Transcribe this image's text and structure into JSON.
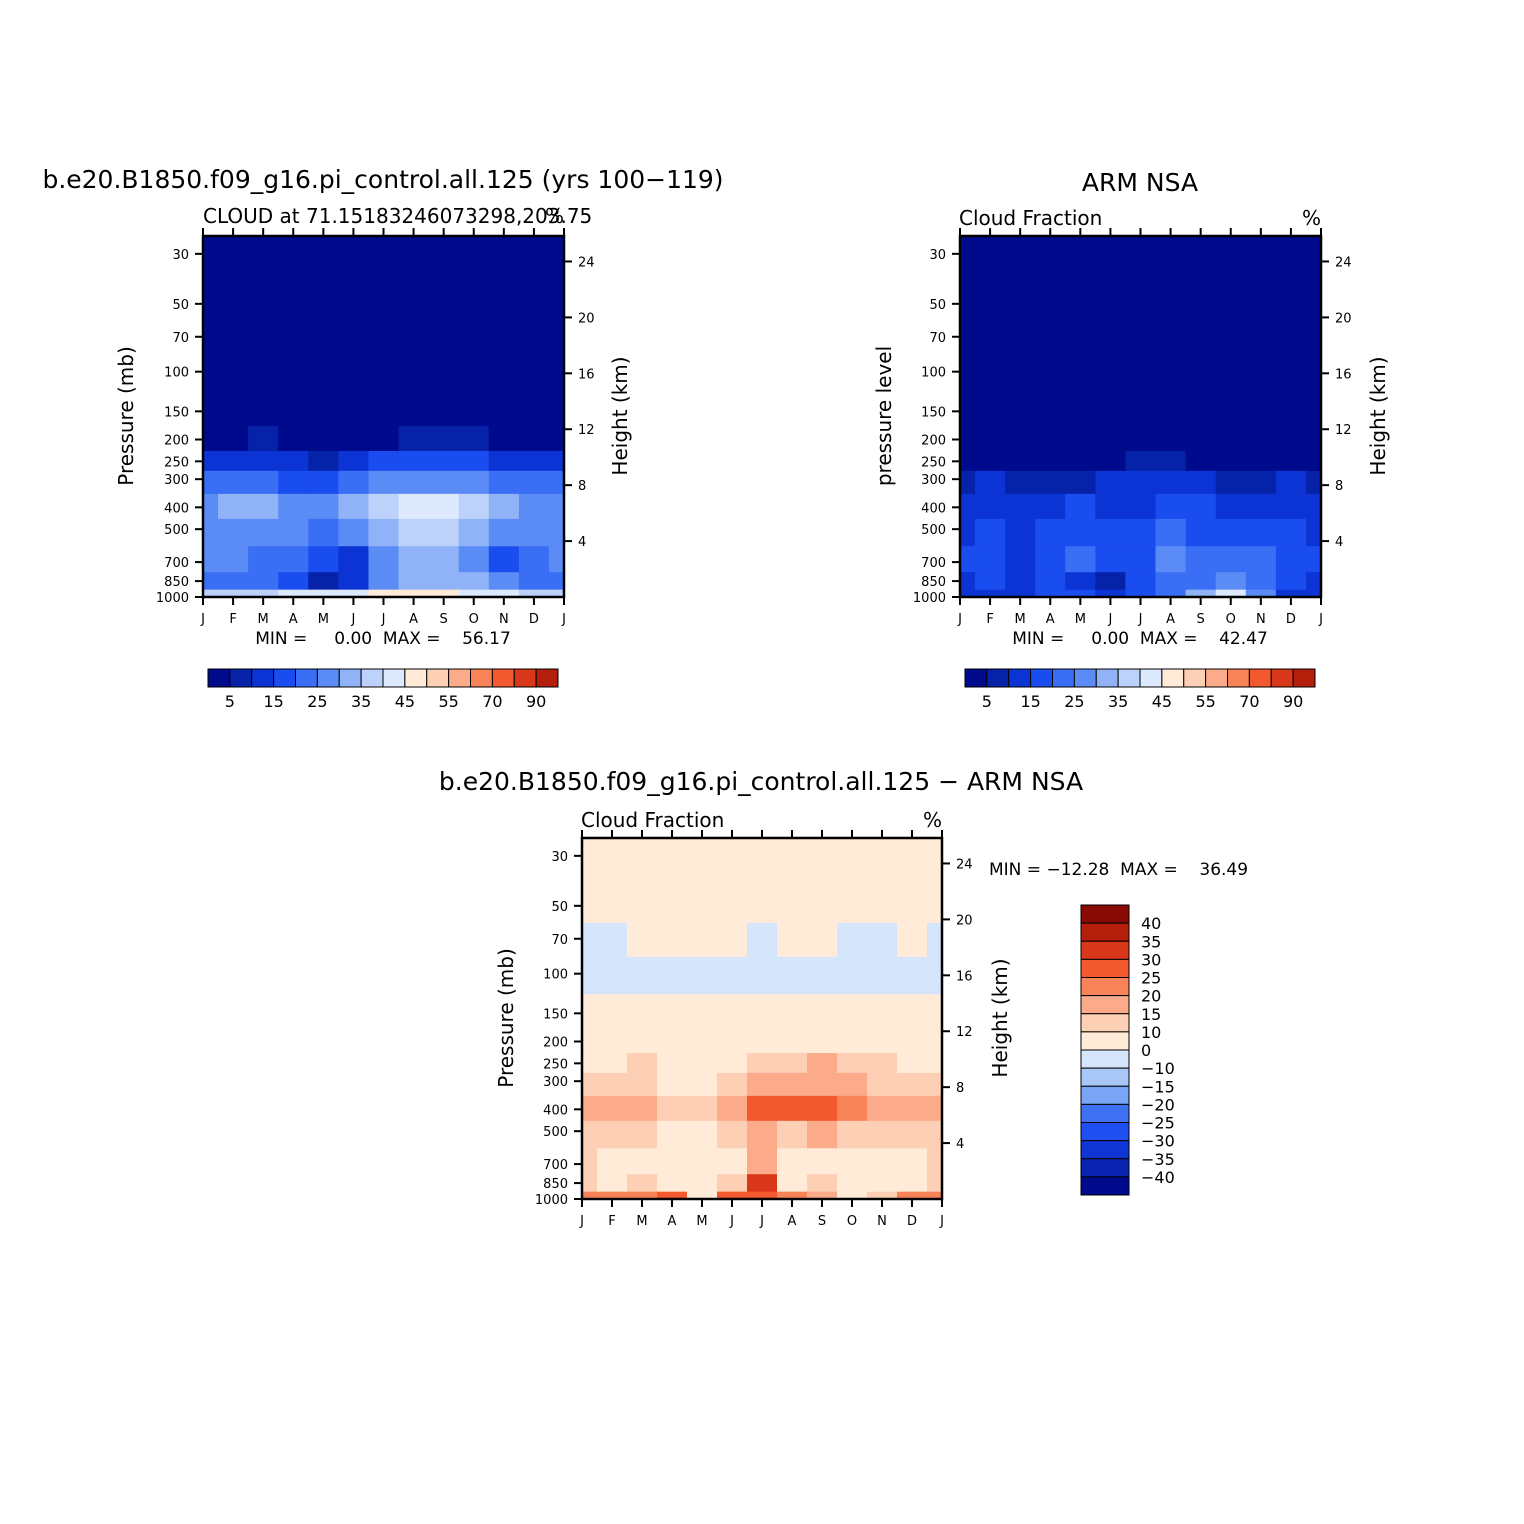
{
  "panels": [
    {
      "title": "b.e20.B1850.f09_g16.pi_control.all.125 (yrs 100−119)",
      "left_label": "CLOUD at 71.15183246073298,203.75",
      "right_label": "%",
      "ylabel": "Pressure (mb)",
      "right_axis_label": "Height (km)",
      "minmax": "MIN =     0.00  MAX =    56.17",
      "min": 0.0,
      "max": 56.17
    },
    {
      "title": "ARM NSA",
      "left_label": "Cloud Fraction",
      "right_label": "%",
      "ylabel": "pressure level",
      "right_axis_label": "Height (km)",
      "minmax": "MIN =     0.00  MAX =    42.47",
      "min": 0.0,
      "max": 42.47
    },
    {
      "title": "b.e20.B1850.f09_g16.pi_control.all.125 − ARM NSA",
      "left_label": "Cloud Fraction",
      "right_label": "%",
      "ylabel": "Pressure (mb)",
      "right_axis_label": "Height (km)",
      "minmax": "MIN = −12.28  MAX =    36.49",
      "min": -12.28,
      "max": 36.49
    }
  ],
  "chart_data": [
    {
      "type": "heatmap",
      "title": "b.e20.B1850.f09_g16.pi_control.all.125 (yrs 100−119)",
      "subtitle": "CLOUD at 71.15183246073298,203.75",
      "units": "%",
      "xlabel": "",
      "ylabel": "Pressure (mb)",
      "y2label": "Height (km)",
      "x": [
        "J",
        "F",
        "M",
        "A",
        "M",
        "J",
        "J",
        "A",
        "S",
        "O",
        "N",
        "D",
        "J"
      ],
      "y_pressure": [
        1000,
        850,
        700,
        500,
        400,
        300,
        250,
        200,
        150,
        100,
        70,
        50,
        30
      ],
      "y2_ticks": [
        4,
        8,
        12,
        16,
        20,
        24
      ],
      "y_scale": "log",
      "values": [
        [
          36,
          36,
          37,
          40,
          41,
          43,
          45,
          46,
          46,
          44,
          40,
          37,
          36
        ],
        [
          24,
          24,
          24,
          15,
          9,
          12,
          27,
          33,
          34,
          32,
          26,
          24,
          24
        ],
        [
          25,
          25,
          22,
          21,
          16,
          14,
          28,
          32,
          32,
          28,
          18,
          20,
          25
        ],
        [
          26,
          26,
          26,
          25,
          24,
          28,
          32,
          35,
          35,
          33,
          28,
          27,
          26
        ],
        [
          29,
          30,
          30,
          28,
          28,
          33,
          38,
          41,
          42,
          36,
          30,
          29,
          29
        ],
        [
          21,
          21,
          20,
          18,
          18,
          23,
          27,
          29,
          29,
          26,
          22,
          21,
          21
        ],
        [
          12,
          13,
          13,
          10,
          9,
          12,
          16,
          18,
          18,
          16,
          14,
          12,
          12
        ],
        [
          3,
          4,
          5,
          2,
          1,
          2,
          4,
          6,
          6,
          5,
          4,
          3,
          3
        ],
        [
          0,
          0,
          0,
          0,
          0,
          0,
          0,
          0,
          0,
          0,
          0,
          0,
          0
        ],
        [
          0,
          0,
          0,
          0,
          0,
          0,
          0,
          0,
          0,
          0,
          0,
          0,
          0
        ],
        [
          0,
          0,
          0,
          0,
          0,
          0,
          0,
          0,
          0,
          0,
          0,
          0,
          0
        ],
        [
          0,
          0,
          0,
          0,
          0,
          0,
          0,
          0,
          0,
          0,
          0,
          0,
          0
        ],
        [
          0,
          0,
          0,
          0,
          0,
          0,
          0,
          0,
          0,
          0,
          0,
          0,
          0
        ]
      ],
      "min": 0.0,
      "max": 56.17,
      "levels": [
        5,
        10,
        15,
        20,
        25,
        30,
        35,
        40,
        45,
        50,
        55,
        60,
        70,
        80,
        90
      ],
      "colorbar_labels": [
        "5",
        "15",
        "25",
        "35",
        "45",
        "55",
        "70",
        "90"
      ]
    },
    {
      "type": "heatmap",
      "title": "ARM NSA",
      "subtitle": "Cloud Fraction",
      "units": "%",
      "xlabel": "",
      "ylabel": "pressure level",
      "y2label": "Height (km)",
      "x": [
        "J",
        "F",
        "M",
        "A",
        "M",
        "J",
        "J",
        "A",
        "S",
        "O",
        "N",
        "D",
        "J"
      ],
      "y_pressure": [
        1000,
        850,
        700,
        500,
        400,
        300,
        250,
        200,
        150,
        100,
        70,
        50,
        30
      ],
      "y2_ticks": [
        4,
        8,
        12,
        16,
        20,
        24
      ],
      "y_scale": "log",
      "values": [
        [
          12,
          12,
          13,
          15,
          17,
          14,
          18,
          22,
          30,
          40,
          28,
          14,
          12
        ],
        [
          14,
          16,
          14,
          18,
          12,
          8,
          16,
          20,
          22,
          28,
          24,
          17,
          14
        ],
        [
          15,
          17,
          14,
          18,
          22,
          16,
          19,
          25,
          24,
          24,
          22,
          18,
          15
        ],
        [
          14,
          16,
          14,
          16,
          19,
          15,
          15,
          21,
          19,
          19,
          18,
          16,
          14
        ],
        [
          13,
          14,
          13,
          14,
          16,
          14,
          13,
          16,
          15,
          14,
          14,
          14,
          13
        ],
        [
          9,
          10,
          8,
          9,
          9,
          10,
          12,
          12,
          10,
          9,
          9,
          10,
          9
        ],
        [
          3,
          4,
          2,
          2,
          3,
          4,
          5,
          5,
          3,
          3,
          3,
          4,
          3
        ],
        [
          0,
          0,
          0,
          0,
          0,
          0,
          0,
          0,
          0,
          0,
          0,
          0,
          0
        ],
        [
          0,
          0,
          0,
          0,
          0,
          0,
          0,
          0,
          0,
          0,
          0,
          0,
          0
        ],
        [
          0,
          0,
          0,
          0,
          0,
          0,
          0,
          0,
          0,
          0,
          0,
          0,
          0
        ],
        [
          0,
          0,
          0,
          0,
          0,
          0,
          0,
          0,
          0,
          0,
          0,
          0,
          0
        ],
        [
          0,
          0,
          0,
          0,
          0,
          0,
          0,
          0,
          0,
          0,
          0,
          0,
          0
        ],
        [
          0,
          0,
          0,
          0,
          0,
          0,
          0,
          0,
          0,
          0,
          0,
          0,
          0
        ]
      ],
      "min": 0.0,
      "max": 42.47,
      "levels": [
        5,
        10,
        15,
        20,
        25,
        30,
        35,
        40,
        45,
        50,
        55,
        60,
        70,
        80,
        90
      ],
      "colorbar_labels": [
        "5",
        "15",
        "25",
        "35",
        "45",
        "55",
        "70",
        "90"
      ]
    },
    {
      "type": "heatmap",
      "title": "b.e20.B1850.f09_g16.pi_control.all.125 − ARM NSA",
      "subtitle": "Cloud Fraction",
      "units": "%",
      "xlabel": "",
      "ylabel": "Pressure (mb)",
      "y2label": "Height (km)",
      "x": [
        "J",
        "F",
        "M",
        "A",
        "M",
        "J",
        "J",
        "A",
        "S",
        "O",
        "N",
        "D",
        "J"
      ],
      "y_pressure": [
        1000,
        850,
        700,
        500,
        400,
        300,
        250,
        200,
        150,
        100,
        70,
        50,
        30
      ],
      "y2_ticks": [
        4,
        8,
        12,
        16,
        20,
        24
      ],
      "y_scale": "log",
      "values": [
        [
          24,
          24,
          24,
          25,
          4,
          29,
          27,
          24,
          16,
          4,
          12,
          23,
          24
        ],
        [
          10,
          8,
          10,
          7,
          8,
          14,
          30,
          8,
          12,
          4,
          2,
          7,
          10
        ],
        [
          10,
          8,
          8,
          3,
          4,
          4,
          18,
          8,
          8,
          4,
          2,
          2,
          10
        ],
        [
          12,
          10,
          12,
          9,
          5,
          13,
          17,
          14,
          16,
          14,
          10,
          11,
          12
        ],
        [
          16,
          16,
          17,
          14,
          12,
          19,
          25,
          25,
          27,
          22,
          16,
          15,
          16
        ],
        [
          12,
          11,
          12,
          9,
          9,
          13,
          15,
          17,
          19,
          17,
          13,
          11,
          12
        ],
        [
          9,
          9,
          11,
          8,
          6,
          8,
          11,
          13,
          15,
          13,
          11,
          8,
          9
        ],
        [
          3,
          4,
          5,
          2,
          1,
          2,
          4,
          6,
          6,
          5,
          4,
          3,
          3
        ],
        [
          0,
          0,
          0,
          0,
          0,
          0,
          0,
          0,
          0,
          0,
          0,
          0,
          0
        ],
        [
          -1,
          -2,
          -3,
          -3,
          -4,
          -3,
          -3,
          -3,
          -4,
          -3,
          -2,
          -1,
          -1
        ],
        [
          -1,
          -1,
          0,
          0,
          0,
          0,
          -2,
          0,
          0,
          -1,
          -1,
          0,
          -1
        ],
        [
          0,
          0,
          0,
          0,
          0,
          0,
          0,
          0,
          0,
          0,
          0,
          0,
          0
        ],
        [
          0,
          0,
          0,
          0,
          0,
          0,
          0,
          0,
          0,
          0,
          0,
          0,
          0
        ]
      ],
      "min": -12.28,
      "max": 36.49,
      "levels": [
        -40,
        -35,
        -30,
        -25,
        -20,
        -15,
        -10,
        0,
        10,
        15,
        20,
        25,
        30,
        35,
        40
      ],
      "colorbar_labels": [
        "40",
        "35",
        "30",
        "25",
        "20",
        "15",
        "10",
        "0",
        "−10",
        "−15",
        "−20",
        "−25",
        "−30",
        "−35",
        "−40"
      ]
    }
  ],
  "colors": {
    "seq": [
      "#000a8c",
      "#0522a8",
      "#0c34d4",
      "#1a4df0",
      "#3a6ef5",
      "#5b8cf5",
      "#90b3f8",
      "#bcd2fa",
      "#dde9fc",
      "#ffebd8",
      "#fdd0b6",
      "#fbab8a",
      "#f88358",
      "#f2592f",
      "#d9371a",
      "#b31f0b",
      "#8a0a05"
    ],
    "div": [
      "#000a8c",
      "#0a22b0",
      "#0f36d4",
      "#1f4ff0",
      "#3f72f2",
      "#7aa4f5",
      "#a8c6f8",
      "#d5e6fc",
      "#ffebd8",
      "#fdd0b6",
      "#fbab8a",
      "#f88358",
      "#f2592f",
      "#d9371a",
      "#b31f0b",
      "#8a0a05"
    ]
  }
}
